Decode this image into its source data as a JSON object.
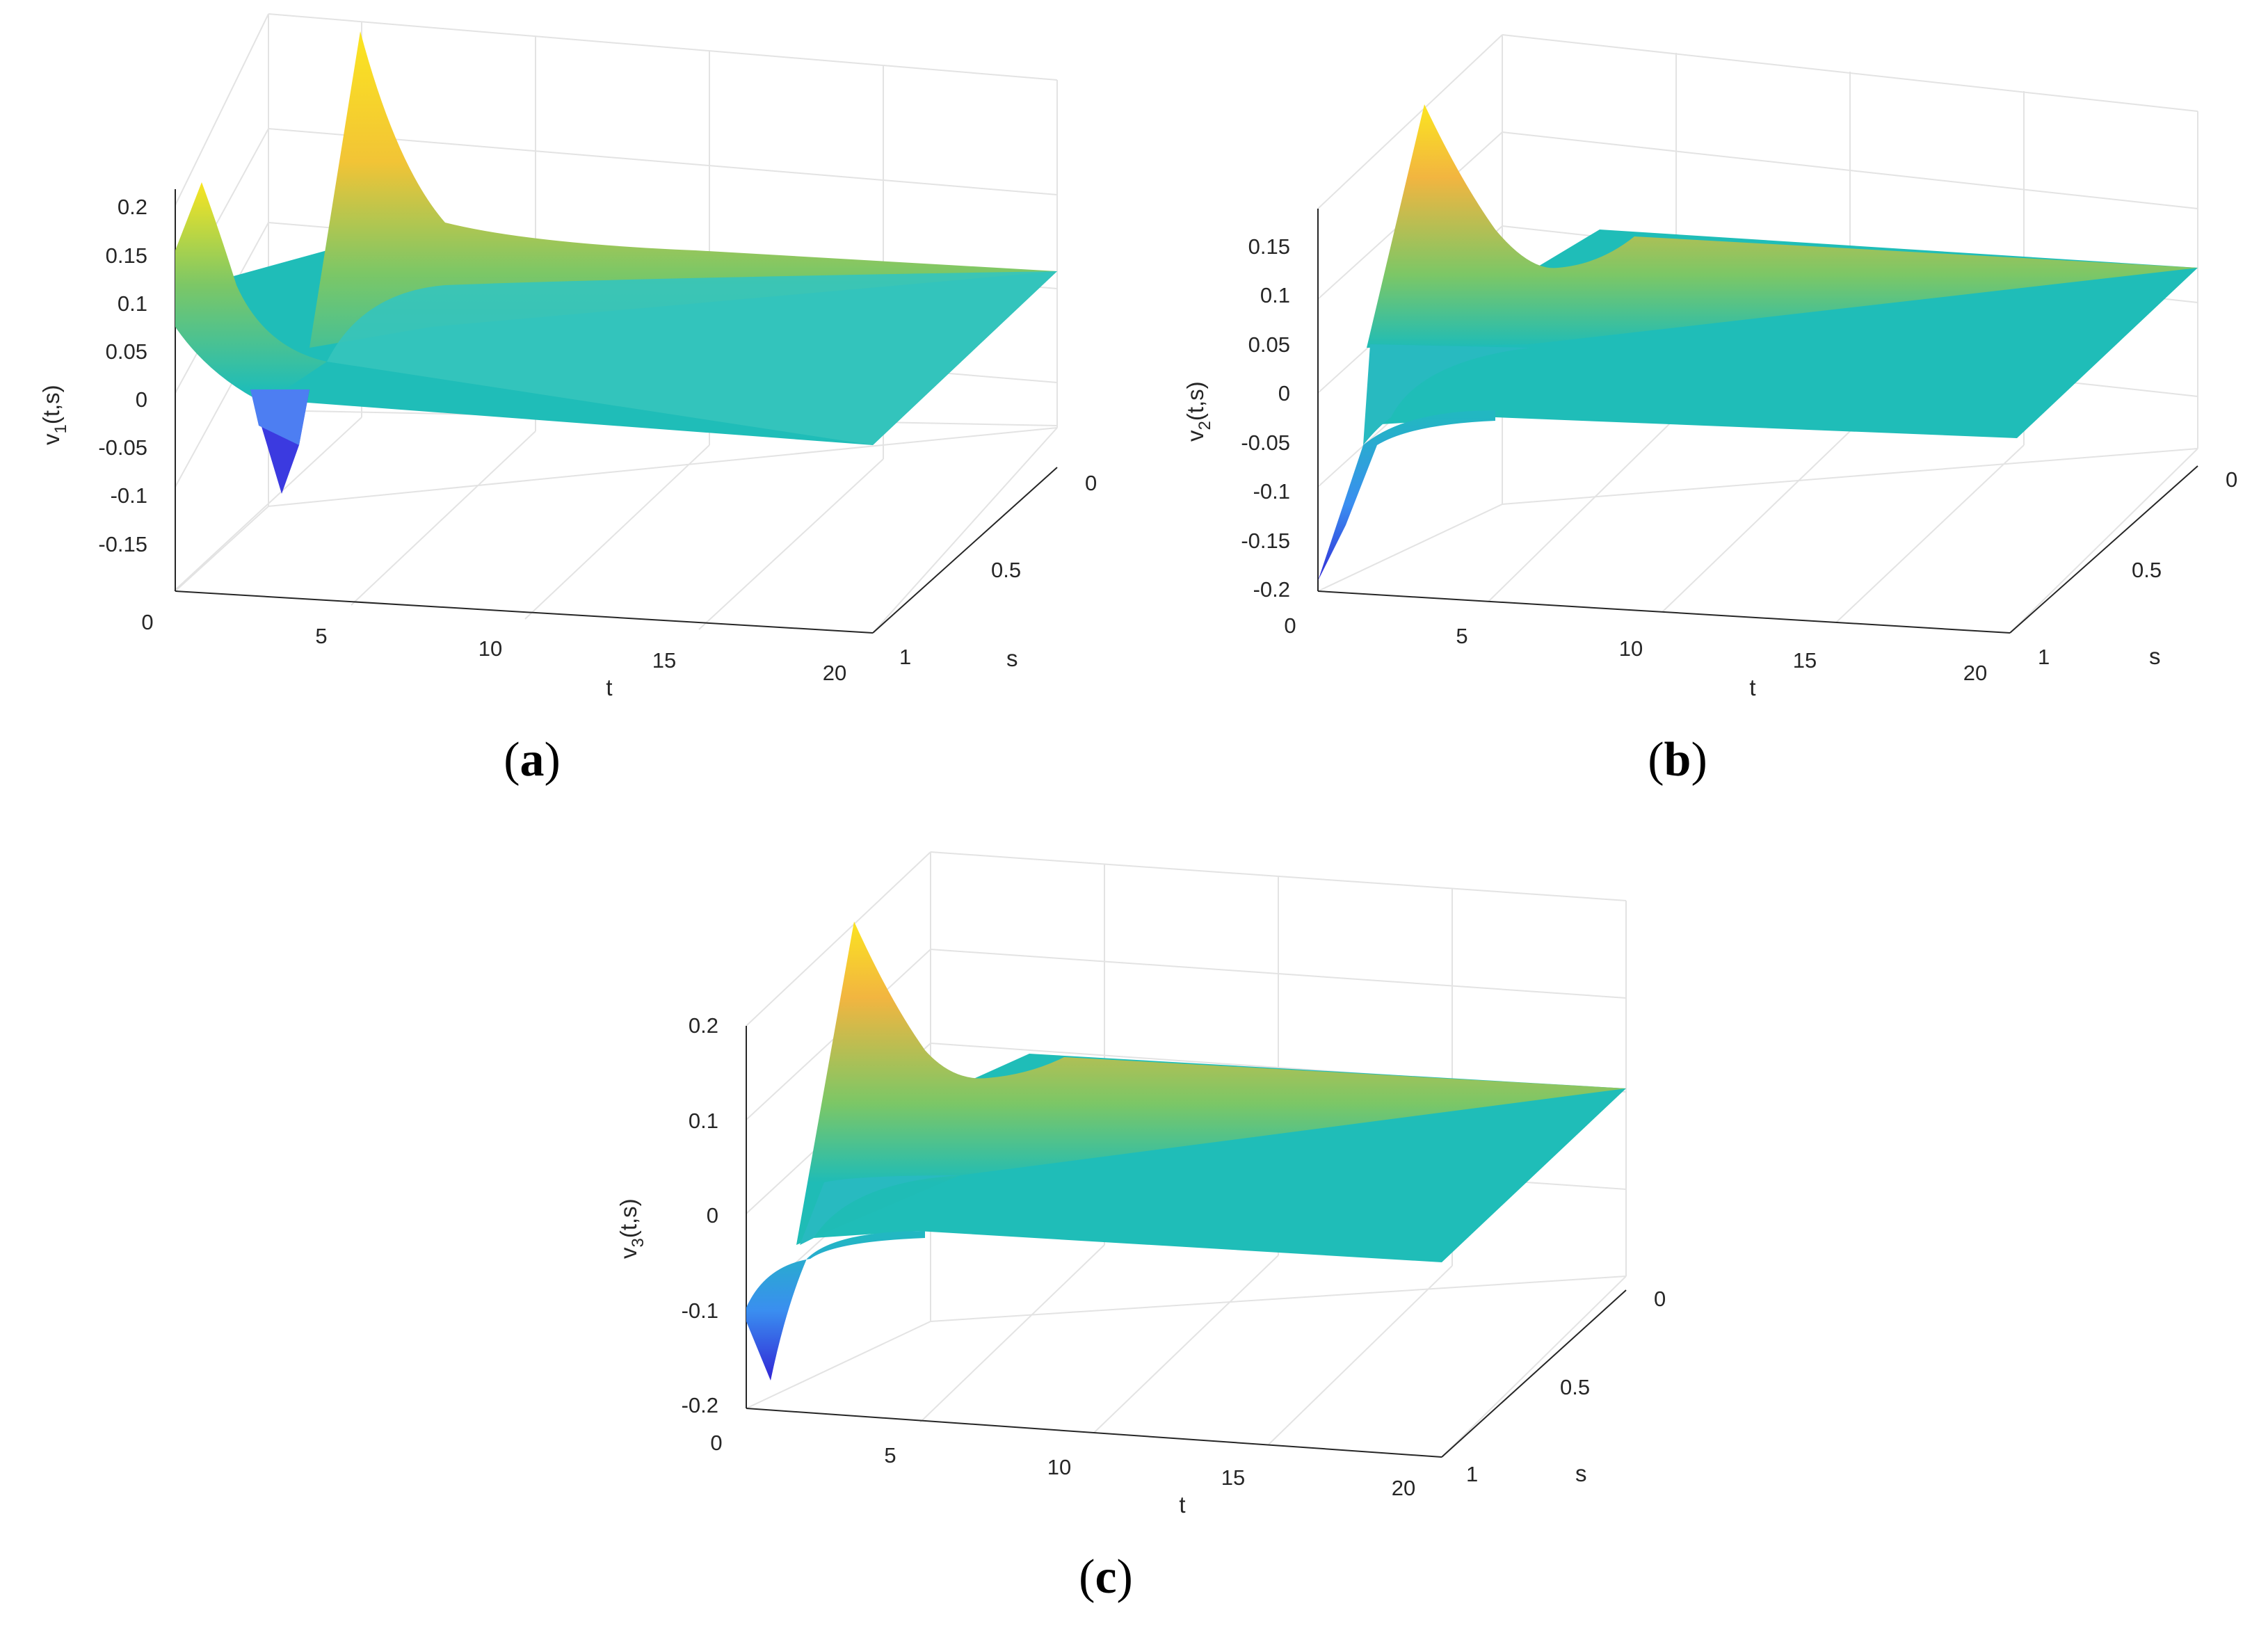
{
  "figure": {
    "panels": [
      "a",
      "b",
      "c"
    ]
  },
  "chart_data": [
    {
      "panel": "a",
      "type": "surface",
      "caption_letter": "a",
      "xlabel": "t",
      "ylabel": "s",
      "zlabel_base": "v",
      "zlabel_sub": "1",
      "zlabel_args": "(t,s)",
      "xlim": [
        0,
        20
      ],
      "ylim": [
        0,
        1
      ],
      "zlim": [
        -0.2,
        0.2
      ],
      "x_ticks": [
        "0",
        "5",
        "10",
        "15",
        "20"
      ],
      "y_ticks": [
        "0",
        "0.5",
        "1"
      ],
      "z_ticks": [
        "0.2",
        "0.15",
        "0.1",
        "0.05",
        "0",
        "-0.05",
        "-0.1",
        "-0.15"
      ],
      "z_tick_values": [
        0.2,
        0.15,
        0.1,
        0.05,
        0,
        -0.05,
        -0.1,
        -0.15
      ],
      "features": {
        "front_edge_s1_peak_t0": 0.12,
        "back_edge_s0_peak": 0.22,
        "back_edge_peak_t": 5,
        "trough_value": -0.1,
        "trough_t": 3,
        "steady_state": 0
      }
    },
    {
      "panel": "b",
      "type": "surface",
      "caption_letter": "b",
      "xlabel": "t",
      "ylabel": "s",
      "zlabel_base": "v",
      "zlabel_sub": "2",
      "zlabel_args": "(t,s)",
      "xlim": [
        0,
        20
      ],
      "ylim": [
        0,
        1
      ],
      "zlim": [
        -0.2,
        0.2
      ],
      "x_ticks": [
        "0",
        "5",
        "10",
        "15",
        "20"
      ],
      "y_ticks": [
        "0",
        "0.5",
        "1"
      ],
      "z_ticks": [
        "0.15",
        "0.1",
        "0.05",
        "0",
        "-0.05",
        "-0.1",
        "-0.15",
        "-0.2"
      ],
      "z_tick_values": [
        0.15,
        0.1,
        0.05,
        0,
        -0.05,
        -0.1,
        -0.15,
        -0.2
      ],
      "features": {
        "front_edge_min_t0": -0.2,
        "back_edge_peak": 0.2,
        "back_edge_peak_t": 2,
        "steady_state": 0
      }
    },
    {
      "panel": "c",
      "type": "surface",
      "caption_letter": "c",
      "xlabel": "t",
      "ylabel": "s",
      "zlabel_base": "v",
      "zlabel_sub": "3",
      "zlabel_args": "(t,s)",
      "xlim": [
        0,
        20
      ],
      "ylim": [
        0,
        1
      ],
      "zlim": [
        -0.2,
        0.2
      ],
      "x_ticks": [
        "0",
        "5",
        "10",
        "15",
        "20"
      ],
      "y_ticks": [
        "0",
        "0.5",
        "1"
      ],
      "z_ticks": [
        "0.2",
        "0.1",
        "0",
        "-0.1",
        "-0.2"
      ],
      "z_tick_values": [
        0.2,
        0.1,
        0,
        -0.1,
        -0.2
      ],
      "features": {
        "front_edge_min_t0": -0.18,
        "back_edge_peak": 0.2,
        "back_edge_peak_t": 2,
        "steady_state": 0
      }
    }
  ]
}
